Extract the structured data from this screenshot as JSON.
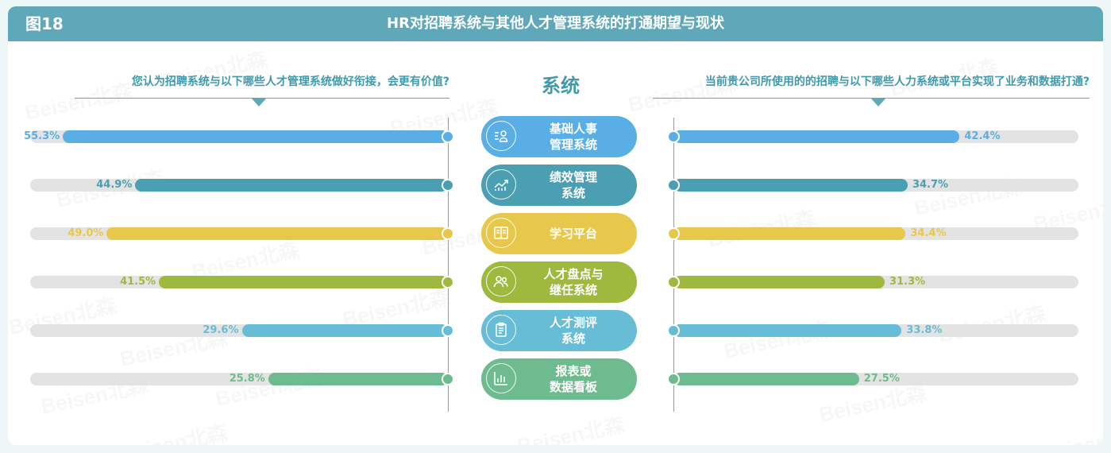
{
  "figure": {
    "label": "图18",
    "title": "HR对招聘系统与其他人才管理系统的打通期望与现状"
  },
  "left_question": "您认为招聘系统与以下哪些人才管理系统做好衔接，会更有价值?",
  "right_question": "当前贵公司所使用的的招聘与以下哪些人力系统或平台实现了业务和数据打通?",
  "center_title": "系统",
  "chart_data": {
    "type": "bar",
    "categories": [
      "基础人事\n管理系统",
      "绩效管理\n系统",
      "学习平台",
      "人才盘点与\n继任系统",
      "人才测评\n系统",
      "报表或\n数据看板"
    ],
    "series": [
      {
        "values": [
          55.3,
          44.9,
          49.0,
          41.5,
          29.6,
          25.8
        ],
        "labels": [
          "55.3%",
          "44.9%",
          "49.0%",
          "41.5%",
          "29.6%",
          "25.8%"
        ]
      },
      {
        "values": [
          42.4,
          34.7,
          34.4,
          31.3,
          33.8,
          27.5
        ],
        "labels": [
          "42.4%",
          "34.7%",
          "34.4%",
          "31.3%",
          "33.8%",
          "27.5%"
        ]
      }
    ],
    "colors": [
      "#5aaee6",
      "#4b9fb3",
      "#e8c84a",
      "#9fb93f",
      "#68bdd6",
      "#6dbb8f"
    ],
    "xlim": [
      0,
      60
    ],
    "icons": [
      "person-list-icon",
      "growth-chart-icon",
      "book-icon",
      "group-icon",
      "clipboard-icon",
      "bar-chart-icon"
    ]
  },
  "watermark": "Beisen北森"
}
